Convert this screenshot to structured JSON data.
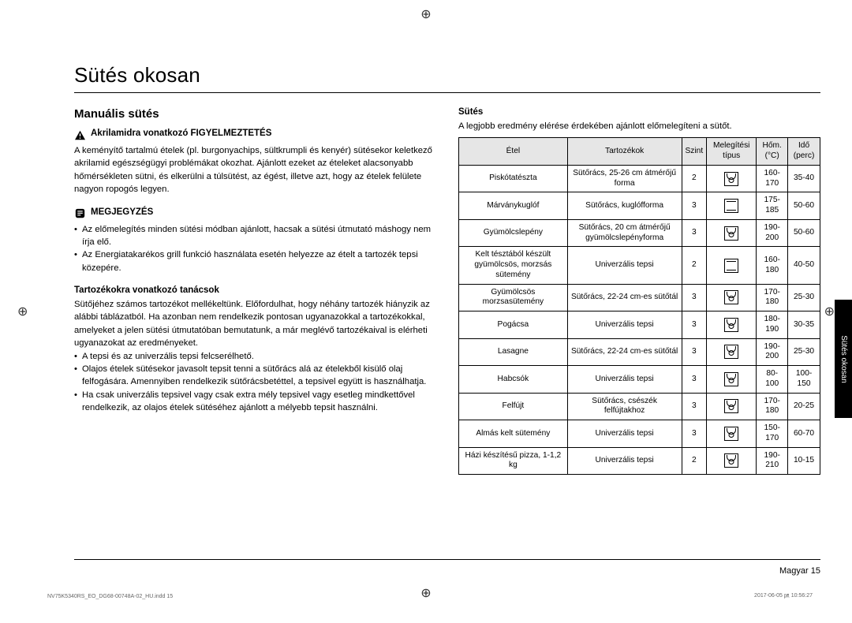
{
  "title": "Sütés okosan",
  "section": "Manuális sütés",
  "warning_label": "Akrilamidra vonatkozó FIGYELMEZTETÉS",
  "warning_text": "A keményítő tartalmú ételek (pl. burgonyachips, sültkrumpli és kenyér) sütésekor keletkező akrilamid egészségügyi problémákat okozhat. Ajánlott ezeket az ételeket alacsonyabb hőmérsékleten sütni, és elkerülni a túlsütést, az égést, illetve azt, hogy az ételek felülete nagyon ropogós legyen.",
  "note_label": "MEGJEGYZÉS",
  "notes": [
    "Az előmelegítés minden sütési módban ajánlott, hacsak a sütési útmutató máshogy nem írja elő.",
    "Az Energiatakarékos grill funkció használata esetén helyezze az ételt a tartozék tepsi közepére."
  ],
  "tips_label": "Tartozékokra vonatkozó tanácsok",
  "tips_text": "Sütőjéhez számos tartozékot mellékeltünk. Előfordulhat, hogy néhány tartozék hiányzik az alábbi táblázatból. Ha azonban nem rendelkezik pontosan ugyanazokkal a tartozékokkal, amelyeket a jelen sütési útmutatóban bemutatunk, a már meglévő tartozékaival is elérheti ugyanazokat az eredményeket.",
  "tips_list": [
    "A tepsi és az univerzális tepsi felcserélhető.",
    "Olajos ételek sütésekor javasolt tepsit tenni a sütőrács alá az ételekből kisülő olaj felfogására. Amennyiben rendelkezik sütőrácsbetéttel, a tepsivel együtt is használhatja.",
    "Ha csak univerzális tepsivel vagy csak extra mély tepsivel vagy esetleg mindkettővel rendelkezik, az olajos ételek sütéséhez ajánlott a mélyebb tepsit használni."
  ],
  "right_title": "Sütés",
  "right_intro": "A legjobb eredmény elérése érdekében ajánlott előmelegíteni a sütőt.",
  "headers": {
    "food": "Étel",
    "acc": "Tartozékok",
    "level": "Szint",
    "mode": "Melegítési típus",
    "temp": "Hőm. (°C)",
    "time": "Idő (perc)"
  },
  "rows": [
    {
      "food": "Piskótatészta",
      "acc": "Sütőrács, 25-26 cm átmérőjű forma",
      "level": "2",
      "mode": "fan-arc",
      "temp": "160-170",
      "time": "35-40"
    },
    {
      "food": "Márványkuglóf",
      "acc": "Sütőrács, kuglófforma",
      "level": "3",
      "mode": "tb",
      "temp": "175-185",
      "time": "50-60"
    },
    {
      "food": "Gyümölcslepény",
      "acc": "Sütőrács, 20 cm átmérőjű gyümölcslepényforma",
      "level": "3",
      "mode": "fan-arc",
      "temp": "190-200",
      "time": "50-60"
    },
    {
      "food": "Kelt tésztából készült gyümölcsös, morzsás sütemény",
      "acc": "Univerzális tepsi",
      "level": "2",
      "mode": "tb",
      "temp": "160-180",
      "time": "40-50"
    },
    {
      "food": "Gyümölcsös morzsasütemény",
      "acc": "Sütőrács, 22-24 cm-es sütőtál",
      "level": "3",
      "mode": "fan-arc",
      "temp": "170-180",
      "time": "25-30"
    },
    {
      "food": "Pogácsa",
      "acc": "Univerzális tepsi",
      "level": "3",
      "mode": "fan-arc",
      "temp": "180-190",
      "time": "30-35"
    },
    {
      "food": "Lasagne",
      "acc": "Sütőrács, 22-24 cm-es sütőtál",
      "level": "3",
      "mode": "fan-arc",
      "temp": "190-200",
      "time": "25-30"
    },
    {
      "food": "Habcsók",
      "acc": "Univerzális tepsi",
      "level": "3",
      "mode": "fan-arc",
      "temp": "80-100",
      "time": "100-150"
    },
    {
      "food": "Felfújt",
      "acc": "Sütőrács, csészék felfújtakhoz",
      "level": "3",
      "mode": "fan-arc",
      "temp": "170-180",
      "time": "20-25"
    },
    {
      "food": "Almás kelt sütemény",
      "acc": "Univerzális tepsi",
      "level": "3",
      "mode": "fan-arc",
      "temp": "150-170",
      "time": "60-70"
    },
    {
      "food": "Házi készítésű pizza, 1-1,2 kg",
      "acc": "Univerzális tepsi",
      "level": "2",
      "mode": "fan-arc",
      "temp": "190-210",
      "time": "10-15"
    }
  ],
  "side_tab": "Sütés okosan",
  "page_footer": "Magyar  15",
  "footer_left": "NV75K5340RS_EO_DG68-00748A-02_HU.indd   15",
  "footer_right": "2017-06-05   ㏘ 10:56:27"
}
